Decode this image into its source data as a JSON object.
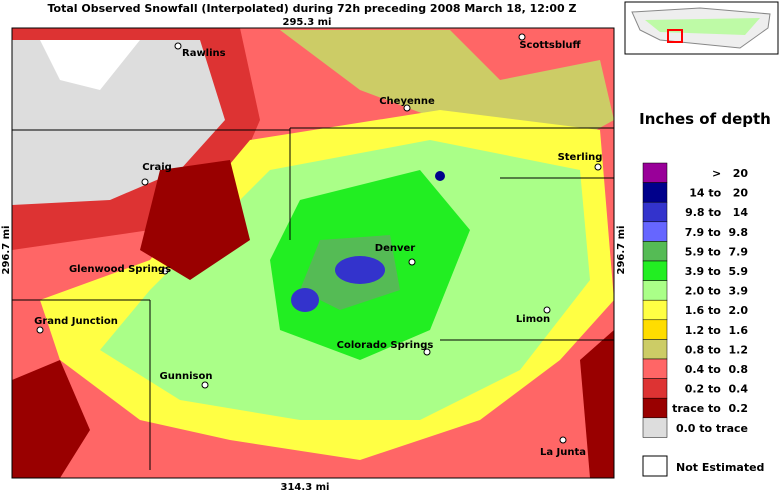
{
  "header": {
    "title": "Total Observed Snowfall (Interpolated) during 72h preceding 2008 March 18, 12:00 Z"
  },
  "scale": {
    "top": "295.3 mi",
    "bottom": "314.3 mi",
    "left": "296.7 mi",
    "right": "296.7 mi"
  },
  "cities": [
    {
      "label": "Rawlins"
    },
    {
      "label": "Scottsbluff"
    },
    {
      "label": "Cheyenne"
    },
    {
      "label": "Craig"
    },
    {
      "label": "Sterling"
    },
    {
      "label": "Denver"
    },
    {
      "label": "Glenwood Springs"
    },
    {
      "label": "Grand Junction"
    },
    {
      "label": "Limon"
    },
    {
      "label": "Colorado Springs"
    },
    {
      "label": "Gunnison"
    },
    {
      "label": "La Junta"
    }
  ],
  "legend": {
    "title": "Inches of depth",
    "items": [
      {
        "label": ">   20",
        "color": "#990099"
      },
      {
        "label": "14 to   20",
        "color": "#00008b"
      },
      {
        "label": "9.8 to   14",
        "color": "#3333cc"
      },
      {
        "label": "7.9 to  9.8",
        "color": "#6666ff"
      },
      {
        "label": "5.9 to  7.9",
        "color": "#55bb55"
      },
      {
        "label": "3.9 to  5.9",
        "color": "#22ee22"
      },
      {
        "label": "2.0 to  3.9",
        "color": "#aaff88"
      },
      {
        "label": "1.6 to  2.0",
        "color": "#ffff44"
      },
      {
        "label": "1.2 to  1.6",
        "color": "#ffdd00"
      },
      {
        "label": "0.8 to  1.2",
        "color": "#cccc66"
      },
      {
        "label": "0.4 to  0.8",
        "color": "#ff6666"
      },
      {
        "label": "0.2 to  0.4",
        "color": "#dd3333"
      },
      {
        "label": "trace to  0.2",
        "color": "#990000"
      },
      {
        "label": "0.0 to trace",
        "color": "#dddddd"
      }
    ],
    "not_estimated": "Not Estimated"
  }
}
